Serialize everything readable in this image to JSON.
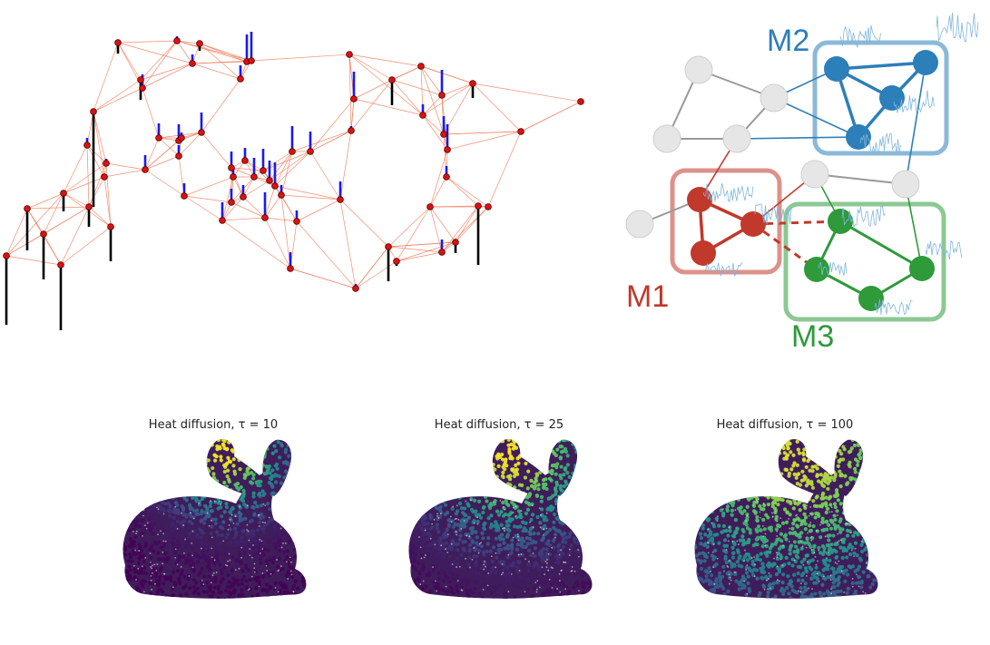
{
  "colors": {
    "graph_edge": "#f07a5a",
    "graph_node": "#e01010",
    "signal_pos": "#1a1aee",
    "signal_neg": "#000000",
    "m1": "#c0392b",
    "m2": "#2c7fb8",
    "m3": "#2e9a3a",
    "neutral_node": "#e6e6e6",
    "neutral_edge": "#999999"
  },
  "modules": {
    "m1_label": "M1",
    "m2_label": "M2",
    "m3_label": "M3"
  },
  "bunnies": [
    {
      "title": "Heat diffusion, τ = 10",
      "tau": 10
    },
    {
      "title": "Heat diffusion, τ = 25",
      "tau": 25
    },
    {
      "title": "Heat diffusion, τ = 100",
      "tau": 100
    }
  ]
}
